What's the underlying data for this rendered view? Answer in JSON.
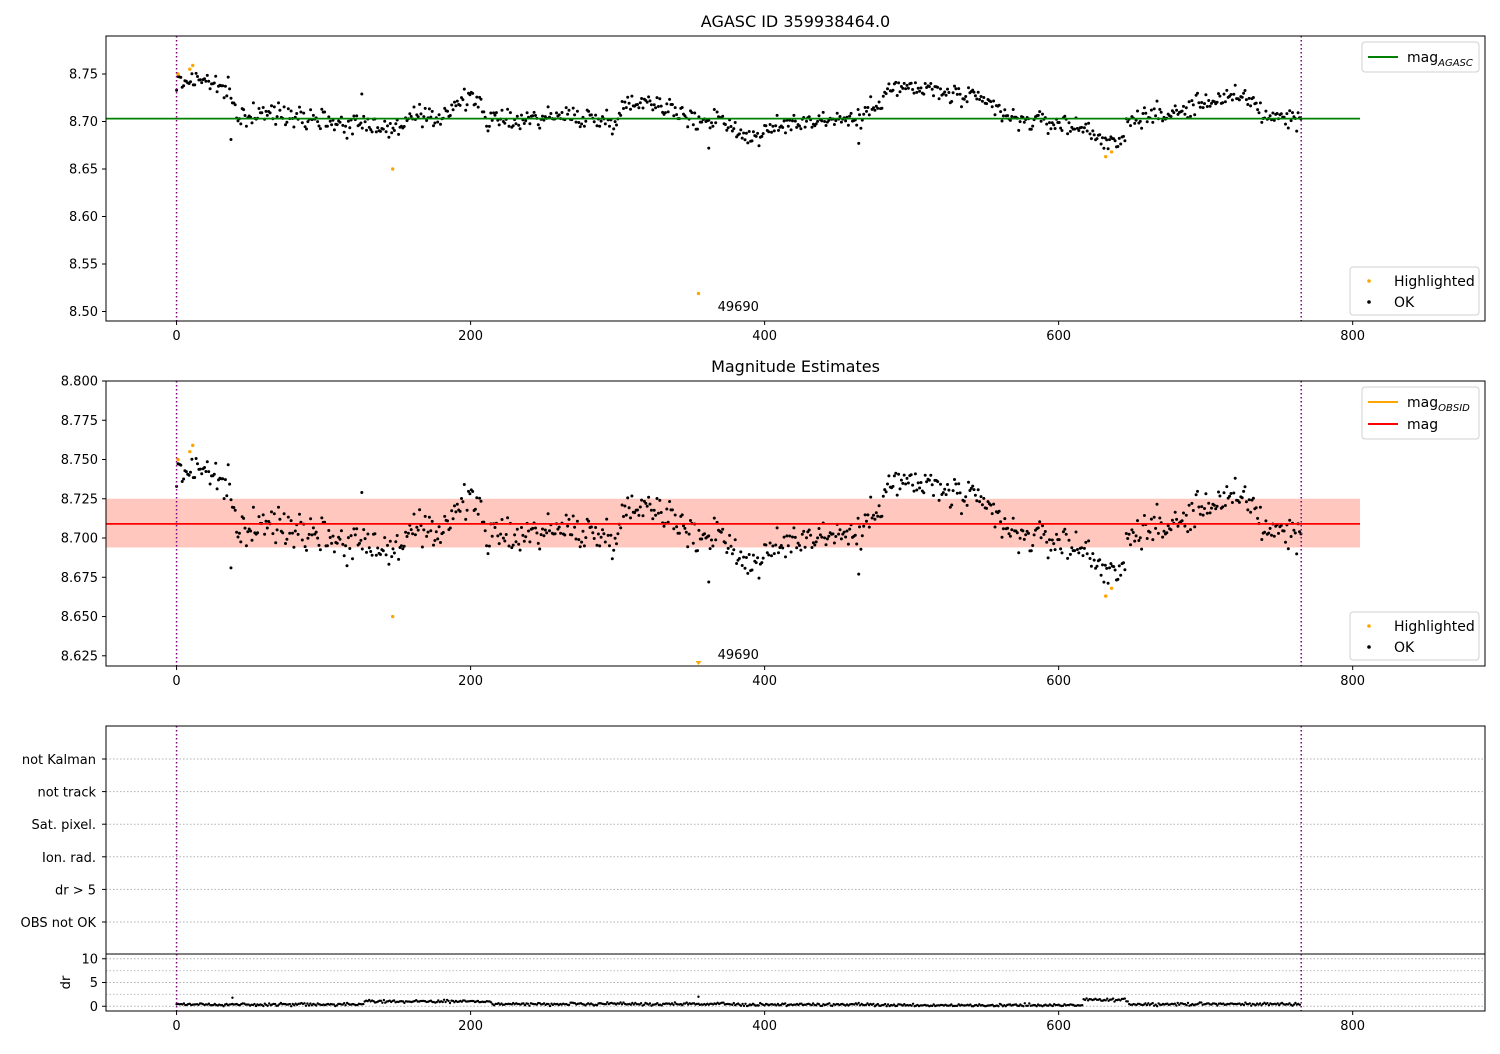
{
  "chart_data": [
    {
      "type": "scatter",
      "title": "AGASC ID 359938464.0",
      "xlim": [
        -48,
        890
      ],
      "ylim": [
        8.49,
        8.79
      ],
      "xticks": [
        0,
        200,
        400,
        600,
        800
      ],
      "yticks": [
        8.5,
        8.55,
        8.6,
        8.65,
        8.7,
        8.75
      ],
      "ytick_decimals": 2,
      "vlines": [
        0,
        765
      ],
      "hline": {
        "value": 8.703,
        "color": "#008000",
        "x": [
          -48,
          805
        ]
      },
      "band": null,
      "legend_lines": [
        {
          "label": "mag",
          "subscript": "AGASC",
          "color": "#008000"
        }
      ],
      "legend_points": [
        {
          "label": "Highlighted",
          "color": "#ffa500"
        },
        {
          "label": "OK",
          "color": "#000000"
        }
      ],
      "annotation": {
        "text": "49690",
        "x": 368,
        "y": 8.505
      },
      "highlighted": {
        "x": [
          1,
          9,
          11,
          147,
          355,
          632,
          636
        ],
        "y": [
          8.75,
          8.755,
          8.759,
          8.65,
          8.519,
          8.663,
          8.668
        ]
      },
      "ok_trend": {
        "x": [
          0,
          12,
          22,
          35,
          38,
          42,
          60,
          80,
          100,
          115,
          130,
          145,
          160,
          175,
          190,
          205,
          212,
          230,
          260,
          280,
          295,
          310,
          330,
          340,
          352,
          370,
          385,
          395,
          420,
          450,
          465,
          485,
          510,
          540,
          555,
          565,
          600,
          620,
          640,
          650,
          680,
          700,
          730,
          740,
          765
        ],
        "y": [
          8.74,
          8.745,
          8.743,
          8.73,
          8.72,
          8.705,
          8.708,
          8.708,
          8.703,
          8.696,
          8.7,
          8.69,
          8.705,
          8.7,
          8.72,
          8.724,
          8.7,
          8.702,
          8.706,
          8.704,
          8.7,
          8.722,
          8.72,
          8.71,
          8.7,
          8.705,
          8.685,
          8.685,
          8.7,
          8.703,
          8.702,
          8.735,
          8.734,
          8.724,
          8.718,
          8.703,
          8.698,
          8.692,
          8.672,
          8.705,
          8.708,
          8.722,
          8.725,
          8.706,
          8.703
        ]
      },
      "outliers": [
        {
          "x": 37,
          "y": 8.681
        },
        {
          "x": 362,
          "y": 8.672
        },
        {
          "x": 126,
          "y": 8.729
        },
        {
          "x": 464,
          "y": 8.677
        }
      ]
    },
    {
      "type": "scatter",
      "title": "Magnitude Estimates",
      "xlim": [
        -48,
        890
      ],
      "ylim": [
        8.6185,
        8.8
      ],
      "xticks": [
        0,
        200,
        400,
        600,
        800
      ],
      "yticks": [
        8.625,
        8.65,
        8.675,
        8.7,
        8.725,
        8.75,
        8.775,
        8.8
      ],
      "ytick_decimals": 3,
      "vlines": [
        0,
        765
      ],
      "hline": {
        "value": 8.709,
        "color": "#ff0000",
        "x": [
          -48,
          805
        ]
      },
      "band": {
        "y0": 8.694,
        "y1": 8.725,
        "x0": -48,
        "x1": 805
      },
      "legend_lines": [
        {
          "label": "mag",
          "subscript": "OBSID",
          "color": "#ffa500"
        },
        {
          "label": "mag",
          "subscript": "",
          "color": "#ff0000"
        }
      ],
      "legend_points": [
        {
          "label": "Highlighted",
          "color": "#ffa500"
        },
        {
          "label": "OK",
          "color": "#000000"
        }
      ],
      "annotation": {
        "text": "49690",
        "x": 368,
        "y": 8.6255
      },
      "highlighted": {
        "x": [
          1,
          9,
          11,
          147,
          632,
          636
        ],
        "y": [
          8.75,
          8.755,
          8.759,
          8.65,
          8.663,
          8.668
        ]
      },
      "arrow_marker": {
        "x": 355,
        "y": 8.6205
      },
      "ok_trend": {
        "x": [
          0,
          12,
          22,
          35,
          38,
          42,
          60,
          80,
          100,
          115,
          130,
          145,
          160,
          175,
          190,
          205,
          212,
          230,
          260,
          280,
          295,
          310,
          330,
          340,
          352,
          370,
          385,
          395,
          420,
          450,
          465,
          485,
          510,
          540,
          555,
          565,
          600,
          620,
          640,
          650,
          680,
          700,
          730,
          740,
          765
        ],
        "y": [
          8.74,
          8.745,
          8.743,
          8.73,
          8.72,
          8.705,
          8.708,
          8.708,
          8.703,
          8.696,
          8.7,
          8.69,
          8.705,
          8.7,
          8.72,
          8.724,
          8.7,
          8.702,
          8.706,
          8.704,
          8.7,
          8.722,
          8.72,
          8.71,
          8.7,
          8.705,
          8.685,
          8.685,
          8.7,
          8.703,
          8.702,
          8.735,
          8.734,
          8.724,
          8.718,
          8.703,
          8.698,
          8.692,
          8.672,
          8.705,
          8.708,
          8.722,
          8.725,
          8.706,
          8.703
        ]
      },
      "outliers": [
        {
          "x": 37,
          "y": 8.681
        },
        {
          "x": 362,
          "y": 8.672
        },
        {
          "x": 126,
          "y": 8.729
        },
        {
          "x": 464,
          "y": 8.677
        }
      ]
    },
    {
      "type": "scatter",
      "title": "",
      "xlim": [
        -48,
        890
      ],
      "category_ticks": [
        "not Kalman",
        "not track",
        "Sat. pixel.",
        "Ion. rad.",
        "dr > 5",
        "OBS not OK"
      ],
      "vlines": [
        0,
        765
      ]
    },
    {
      "type": "scatter",
      "title": "",
      "ylabel": "dr",
      "xlim": [
        -48,
        890
      ],
      "ylim": [
        -1,
        11
      ],
      "xticks": [
        0,
        200,
        400,
        600,
        800
      ],
      "yticks": [
        0,
        5,
        10
      ],
      "vlines": [
        0,
        765
      ],
      "dr_segments": [
        {
          "x0": 0,
          "x1": 128,
          "y": 0.35
        },
        {
          "x0": 128,
          "x1": 215,
          "y": 1.0
        },
        {
          "x0": 215,
          "x1": 380,
          "y": 0.45
        },
        {
          "x0": 380,
          "x1": 475,
          "y": 0.35
        },
        {
          "x0": 475,
          "x1": 617,
          "y": 0.2
        },
        {
          "x0": 617,
          "x1": 648,
          "y": 1.3
        },
        {
          "x0": 648,
          "x1": 765,
          "y": 0.45
        }
      ],
      "dr_spikes": [
        {
          "x": 38,
          "y": 1.8
        },
        {
          "x": 355,
          "y": 2.0
        }
      ]
    }
  ]
}
